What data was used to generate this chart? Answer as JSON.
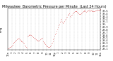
{
  "title": "Milwaukee  Barometric Pressure per Minute  (Last 24 Hours)",
  "bg_color": "#ffffff",
  "plot_bg_color": "#ffffff",
  "line_color": "#cc0000",
  "grid_color": "#bbbbbb",
  "title_fontsize": 3.5,
  "tick_fontsize": 2.5,
  "ylim": [
    29.05,
    30.58
  ],
  "yticks": [
    29.1,
    29.2,
    29.3,
    29.4,
    29.5,
    29.6,
    29.7,
    29.8,
    29.9,
    30.0,
    30.1,
    30.2,
    30.3,
    30.4,
    30.5
  ],
  "ytick_labels": [
    "29.1",
    "29.2",
    "29.3",
    "29.4",
    "29.5",
    "29.6",
    "29.7",
    "29.8",
    "29.9",
    "30.",
    "30.1",
    "30.2",
    "30.3",
    "30.4",
    "30.5"
  ],
  "x_tick_positions": [
    0,
    6,
    12,
    18,
    24,
    30,
    36,
    42,
    48,
    54,
    60,
    66,
    72,
    78,
    84,
    90,
    96,
    102,
    108,
    114,
    120,
    126,
    132,
    138,
    143
  ],
  "x_tick_labels": [
    "12a",
    "1",
    "2",
    "3",
    "4",
    "5",
    "6",
    "7",
    "8",
    "9",
    "10",
    "11",
    "12p",
    "1",
    "2",
    "3",
    "4",
    "5",
    "6",
    "7",
    "8",
    "9",
    "10",
    "11",
    "12a"
  ],
  "vgrid_positions": [
    6,
    12,
    18,
    24,
    30,
    36,
    42,
    48,
    54,
    60,
    66,
    72,
    78,
    84,
    90,
    96,
    102,
    108,
    114,
    120,
    126,
    132,
    138
  ],
  "pressure_data": [
    29.1,
    29.11,
    29.13,
    29.15,
    29.17,
    29.19,
    29.22,
    29.25,
    29.28,
    29.31,
    29.34,
    29.37,
    29.4,
    29.42,
    29.44,
    29.46,
    29.47,
    29.46,
    29.44,
    29.42,
    29.4,
    29.38,
    29.36,
    29.34,
    29.32,
    29.28,
    29.24,
    29.2,
    29.17,
    29.14,
    29.55,
    29.57,
    29.59,
    29.61,
    29.62,
    29.61,
    29.59,
    29.57,
    29.55,
    29.52,
    29.5,
    29.48,
    29.46,
    29.44,
    29.42,
    29.41,
    29.4,
    29.39,
    29.4,
    29.42,
    29.44,
    29.46,
    29.48,
    29.5,
    29.38,
    29.35,
    29.32,
    29.29,
    29.26,
    29.23,
    29.2,
    29.18,
    29.16,
    29.15,
    29.17,
    29.2,
    29.24,
    29.28,
    29.33,
    29.38,
    29.44,
    29.5,
    29.56,
    29.62,
    29.68,
    29.75,
    29.82,
    29.89,
    29.96,
    30.02,
    30.08,
    30.13,
    30.17,
    30.2,
    30.1,
    30.05,
    30.08,
    30.12,
    30.16,
    30.2,
    30.24,
    30.28,
    30.32,
    30.35,
    30.38,
    30.4,
    30.3,
    30.28,
    30.32,
    30.36,
    30.4,
    30.43,
    30.45,
    30.47,
    30.48,
    30.49,
    30.47,
    30.45,
    30.43,
    30.41,
    30.39,
    30.37,
    30.39,
    30.41,
    30.43,
    30.45,
    30.47,
    30.49,
    30.51,
    30.52,
    30.48,
    30.46,
    30.48,
    30.5,
    30.51,
    30.5,
    30.49,
    30.5,
    30.52,
    30.51,
    30.49,
    30.48,
    30.47,
    30.48,
    30.49,
    30.5,
    30.51,
    30.52,
    30.53,
    30.54,
    30.52,
    30.53,
    30.54,
    30.55
  ],
  "marker_size": 0.7,
  "left_label": "inHg"
}
